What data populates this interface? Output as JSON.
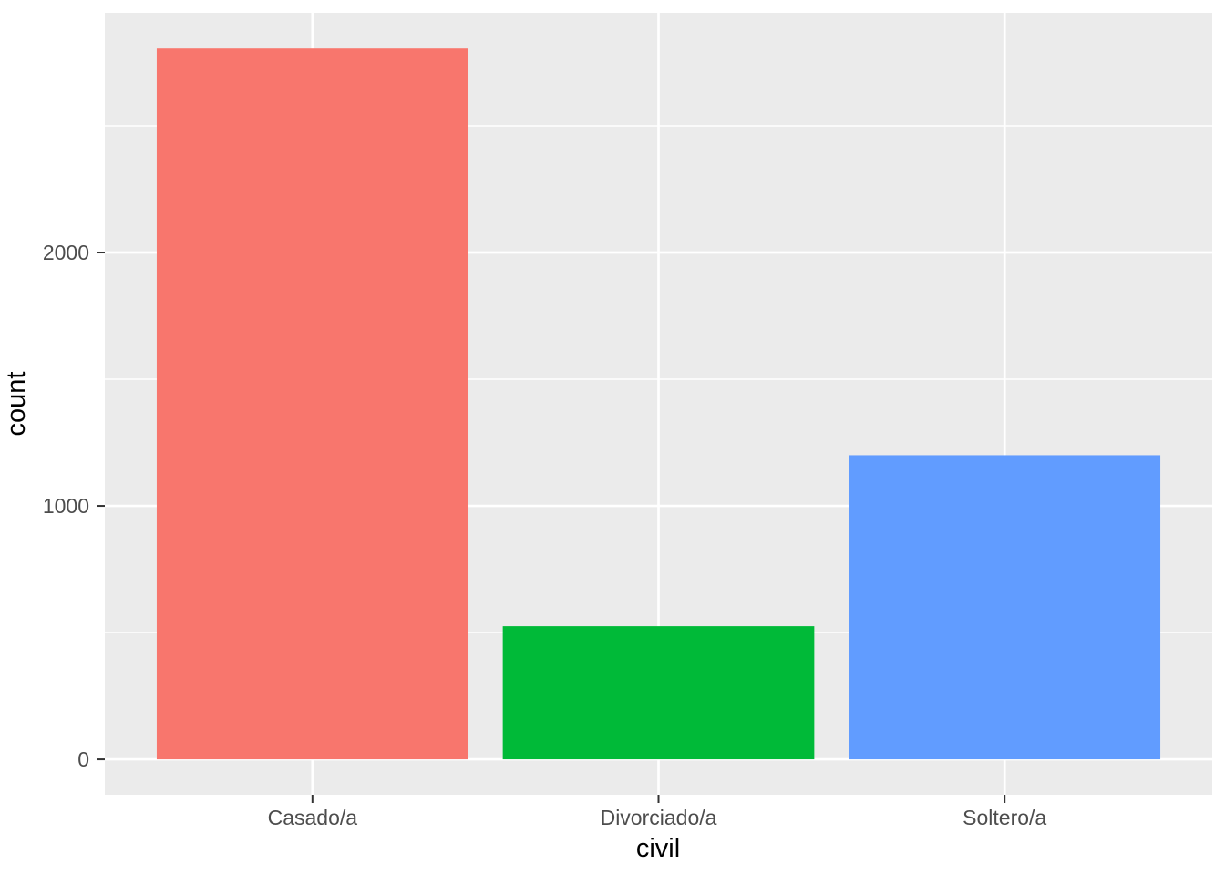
{
  "figure": {
    "background": "#FFFFFF"
  },
  "chart_data": {
    "type": "bar",
    "title": "",
    "xlabel": "civil",
    "ylabel": "count",
    "categories": [
      "Casado/a",
      "Divorciado/a",
      "Soltero/a"
    ],
    "values": [
      2805,
      525,
      1200
    ],
    "bar_colors": [
      "#F8766D",
      "#00BA38",
      "#619CFF"
    ],
    "y_ticks_major": [
      0,
      1000,
      2000
    ],
    "y_tick_labels": [
      "0",
      "1000",
      "2000"
    ],
    "y_ticks_minor": [
      500,
      1500,
      2500
    ],
    "ylim": [
      -140,
      2946
    ],
    "grid": "major-and-minor, white on gray panel",
    "legend_position": "none",
    "panel_background": "#EBEBEB",
    "gridline_color": "#FFFFFF",
    "tick_label_color": "#4D4D4D",
    "axis_title_color": "#000000",
    "tick_mark_color": "#333333"
  }
}
